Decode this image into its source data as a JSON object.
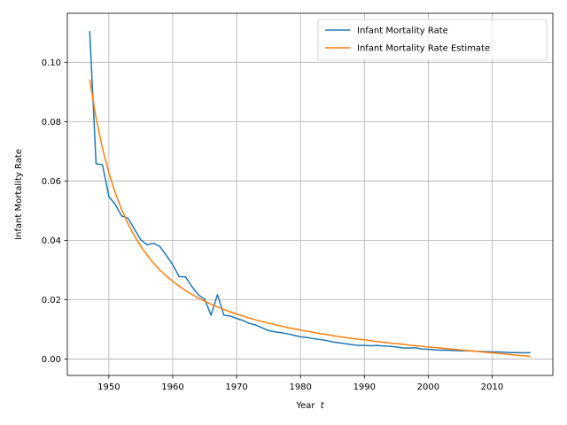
{
  "chart_data": {
    "type": "line",
    "title": "",
    "xlabel": "Year",
    "xlabel_var": "t",
    "ylabel": "Infant Mortality Rate",
    "xlim": [
      1943.5,
      2019.5
    ],
    "ylim": [
      -0.0055,
      0.1165
    ],
    "xticks": [
      1950,
      1960,
      1970,
      1980,
      1990,
      2000,
      2010
    ],
    "xtick_labels": [
      "1950",
      "1960",
      "1970",
      "1980",
      "1990",
      "2000",
      "2010"
    ],
    "yticks": [
      0.0,
      0.02,
      0.04,
      0.06,
      0.08,
      0.1
    ],
    "ytick_labels": [
      "0.00",
      "0.02",
      "0.04",
      "0.06",
      "0.08",
      "0.10"
    ],
    "grid": true,
    "legend_position": "upper-right",
    "series": [
      {
        "name": "Infant Mortality Rate",
        "color": "#1f77b4",
        "x": [
          1947,
          1948,
          1949,
          1950,
          1951,
          1952,
          1953,
          1954,
          1955,
          1956,
          1957,
          1958,
          1959,
          1960,
          1961,
          1962,
          1963,
          1964,
          1965,
          1966,
          1967,
          1968,
          1969,
          1970,
          1971,
          1972,
          1973,
          1974,
          1975,
          1976,
          1977,
          1978,
          1979,
          1980,
          1981,
          1982,
          1983,
          1984,
          1985,
          1986,
          1987,
          1988,
          1989,
          1990,
          1991,
          1992,
          1993,
          1994,
          1995,
          1996,
          1997,
          1998,
          1999,
          2000,
          2001,
          2002,
          2003,
          2004,
          2005,
          2006,
          2007,
          2008,
          2009,
          2010,
          2011,
          2012,
          2013,
          2014,
          2015,
          2016
        ],
        "y": [
          0.1105,
          0.0658,
          0.0655,
          0.0548,
          0.0521,
          0.0482,
          0.0475,
          0.0438,
          0.0402,
          0.0385,
          0.039,
          0.0379,
          0.0349,
          0.0318,
          0.0278,
          0.0277,
          0.0244,
          0.0217,
          0.0201,
          0.0148,
          0.0217,
          0.0148,
          0.0145,
          0.0137,
          0.013,
          0.012,
          0.0115,
          0.0105,
          0.0096,
          0.0092,
          0.0089,
          0.0085,
          0.008,
          0.0075,
          0.0073,
          0.0069,
          0.0066,
          0.0063,
          0.0058,
          0.0055,
          0.0052,
          0.0049,
          0.0046,
          0.0046,
          0.0045,
          0.0046,
          0.0044,
          0.0043,
          0.0041,
          0.0038,
          0.0037,
          0.0038,
          0.0034,
          0.0033,
          0.0031,
          0.003,
          0.003,
          0.0029,
          0.0028,
          0.0028,
          0.0027,
          0.0026,
          0.0025,
          0.0024,
          0.0024,
          0.0023,
          0.0022,
          0.0022,
          0.0021,
          0.0022
        ]
      },
      {
        "name": "Infant Mortality Rate Estimate",
        "color": "#ff7f0e",
        "x": [
          1947,
          1948,
          1949,
          1950,
          1951,
          1952,
          1953,
          1954,
          1955,
          1956,
          1957,
          1958,
          1959,
          1960,
          1961,
          1962,
          1963,
          1964,
          1965,
          1966,
          1967,
          1968,
          1969,
          1970,
          1971,
          1972,
          1973,
          1974,
          1975,
          1976,
          1977,
          1978,
          1979,
          1980,
          1981,
          1982,
          1983,
          1984,
          1985,
          1986,
          1987,
          1988,
          1989,
          1990,
          1991,
          1992,
          1993,
          1994,
          1995,
          1996,
          1997,
          1998,
          1999,
          2000,
          2001,
          2002,
          2003,
          2004,
          2005,
          2006,
          2007,
          2008,
          2009,
          2010,
          2011,
          2012,
          2013,
          2014,
          2015,
          2016
        ],
        "y": [
          0.0942,
          0.0812,
          0.071,
          0.0628,
          0.056,
          0.0504,
          0.0456,
          0.0415,
          0.038,
          0.035,
          0.0323,
          0.03,
          0.028,
          0.0262,
          0.0246,
          0.0231,
          0.0218,
          0.0206,
          0.0195,
          0.0185,
          0.0176,
          0.0167,
          0.0159,
          0.0152,
          0.0145,
          0.0138,
          0.0132,
          0.0126,
          0.0121,
          0.0116,
          0.0111,
          0.0106,
          0.0102,
          0.0098,
          0.0094,
          0.009,
          0.0086,
          0.0083,
          0.0079,
          0.0076,
          0.0073,
          0.007,
          0.0067,
          0.0065,
          0.0062,
          0.0059,
          0.0057,
          0.0054,
          0.0052,
          0.005,
          0.0047,
          0.0045,
          0.0043,
          0.0041,
          0.0039,
          0.0037,
          0.0035,
          0.0033,
          0.0031,
          0.0029,
          0.0027,
          0.0025,
          0.0023,
          0.0021,
          0.0019,
          0.0017,
          0.0015,
          0.0013,
          0.0011,
          0.0009
        ]
      }
    ]
  }
}
